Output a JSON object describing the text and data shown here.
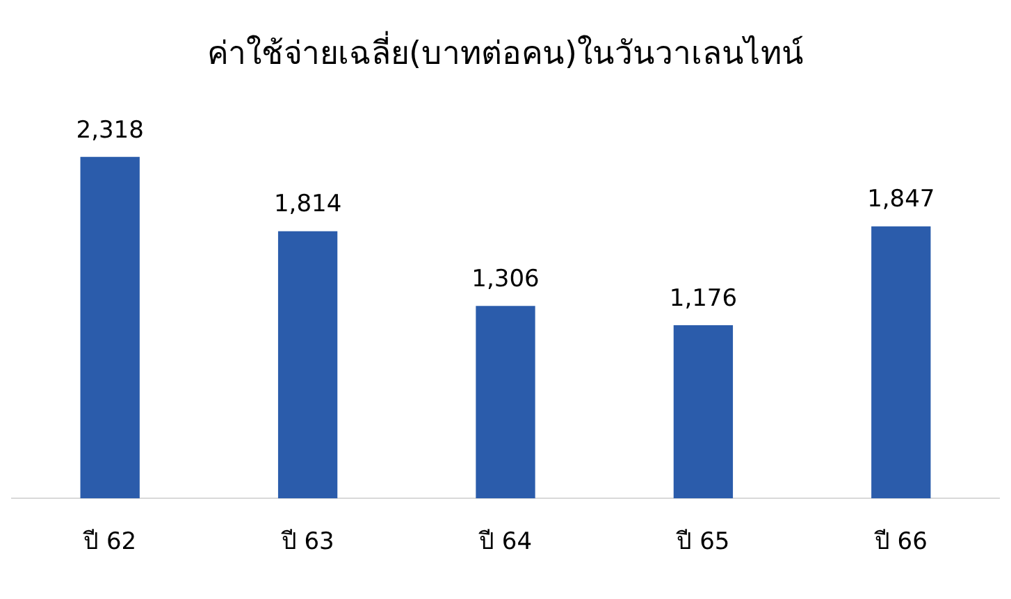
{
  "chart_data": {
    "type": "bar",
    "title": "ค่าใช้จ่ายเฉลี่ย(บาทต่อคน)ในวันวาเลนไทน์",
    "categories": [
      "ปี 62",
      "ปี 63",
      "ปี 64",
      "ปี 65",
      "ปี 66"
    ],
    "values": [
      2318,
      1814,
      1306,
      1176,
      1847
    ],
    "value_labels": [
      "2,318",
      "1,814",
      "1,306",
      "1,176",
      "1,847"
    ],
    "color": "#2b5cab",
    "tick_labels": "x",
    "grid": false,
    "legend": false
  }
}
